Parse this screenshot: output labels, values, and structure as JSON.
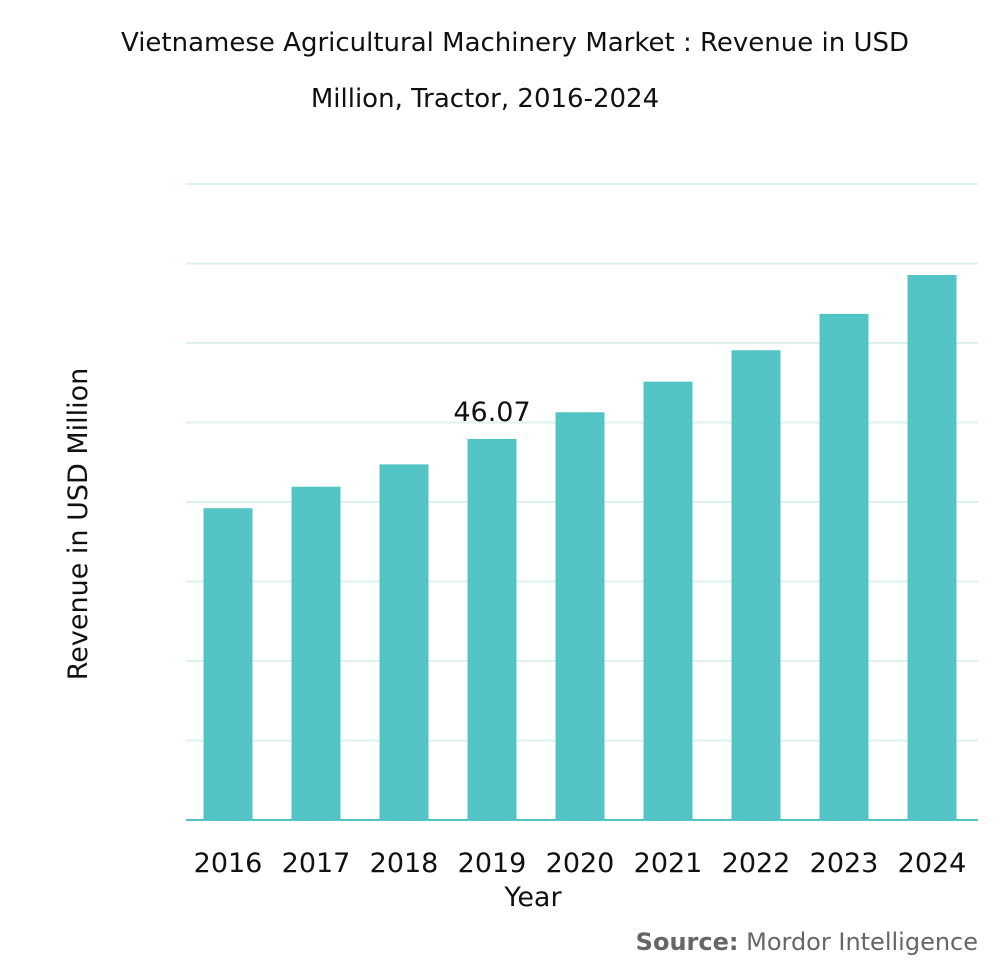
{
  "chart_data": {
    "type": "bar",
    "title_line1": "Vietnamese Agricultural Machinery Market : Revenue in USD",
    "title_line2": "Million, Tractor, 2016-2024",
    "xlabel": "Year",
    "ylabel": "Revenue in USD Million",
    "categories": [
      "2016",
      "2017",
      "2018",
      "2019",
      "2020",
      "2021",
      "2022",
      "2023",
      "2024"
    ],
    "values": [
      37.7,
      40.3,
      43.0,
      46.07,
      49.3,
      53.0,
      56.8,
      61.2,
      65.9
    ],
    "data_labels": {
      "3": "46.07"
    },
    "ylim": [
      0,
      76.9
    ],
    "gridlines": 8,
    "grid": true,
    "bar_color": "#52C4C6",
    "grid_color": "#DDF1F0"
  },
  "source": {
    "label": "Source:",
    "text": "Mordor Intelligence"
  }
}
